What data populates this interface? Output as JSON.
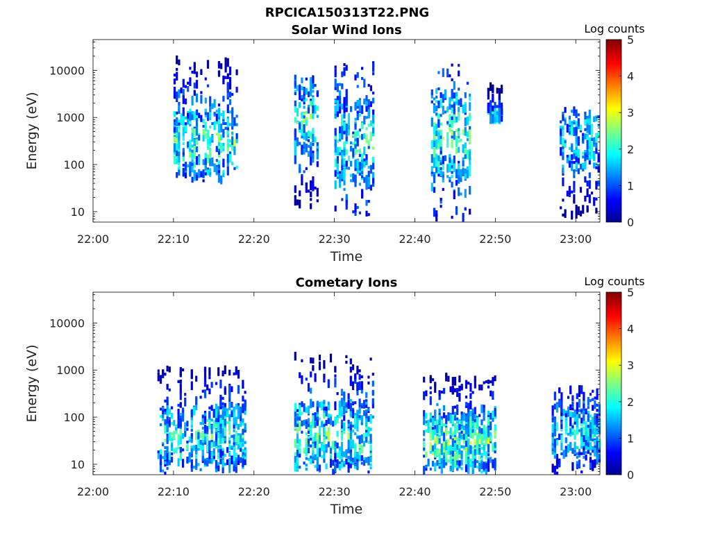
{
  "figure": {
    "title": "RPCICA150313T22.PNG"
  },
  "chart_data": [
    {
      "type": "heatmap",
      "title": "Solar Wind Ions",
      "xlabel": "Time",
      "ylabel": "Energy (eV)",
      "x_ticks": [
        "22:00",
        "22:10",
        "22:20",
        "22:30",
        "22:40",
        "22:50",
        "23:00"
      ],
      "x_range": [
        "22:00",
        "23:03"
      ],
      "y_scale": "log",
      "y_ticks": [
        "10",
        "100",
        "1000",
        "10000"
      ],
      "y_range": [
        6,
        45000
      ],
      "colorbar": {
        "label": "Log counts",
        "range": [
          0,
          5
        ],
        "ticks": [
          "0",
          "1",
          "2",
          "3",
          "4",
          "5"
        ],
        "colormap": "jet"
      },
      "bursts": [
        {
          "t_start": "22:10",
          "t_end": "22:18",
          "e_min": 45,
          "e_max": 17000,
          "peak_energy": 300,
          "peak_log_counts": 2.6
        },
        {
          "t_start": "22:25",
          "t_end": "22:28",
          "e_min": 13,
          "e_max": 7000,
          "peak_energy": 1000,
          "peak_log_counts": 2.4
        },
        {
          "t_start": "22:30",
          "t_end": "22:35",
          "e_min": 6,
          "e_max": 14000,
          "peak_energy": 300,
          "peak_log_counts": 2.3
        },
        {
          "t_start": "22:42",
          "t_end": "22:47",
          "e_min": 6,
          "e_max": 13000,
          "peak_energy": 400,
          "peak_log_counts": 2.6
        },
        {
          "t_start": "22:49",
          "t_end": "22:51",
          "e_min": 900,
          "e_max": 5000,
          "peak_energy": 1100,
          "peak_log_counts": 2.0
        },
        {
          "t_start": "22:58",
          "t_end": "23:03",
          "e_min": 8,
          "e_max": 1500,
          "peak_energy": 300,
          "peak_log_counts": 2.2
        }
      ]
    },
    {
      "type": "heatmap",
      "title": "Cometary Ions",
      "xlabel": "Time",
      "ylabel": "Energy (eV)",
      "x_ticks": [
        "22:00",
        "22:10",
        "22:20",
        "22:30",
        "22:40",
        "22:50",
        "23:00"
      ],
      "x_range": [
        "22:00",
        "23:03"
      ],
      "y_scale": "log",
      "y_ticks": [
        "10",
        "100",
        "1000",
        "10000"
      ],
      "y_range": [
        6,
        45000
      ],
      "colorbar": {
        "label": "Log counts",
        "range": [
          0,
          5
        ],
        "ticks": [
          "0",
          "1",
          "2",
          "3",
          "4",
          "5"
        ],
        "colormap": "jet"
      },
      "bursts": [
        {
          "t_start": "22:08",
          "t_end": "22:19",
          "e_min": 6,
          "e_max": 1100,
          "peak_energy": 40,
          "peak_log_counts": 2.4
        },
        {
          "t_start": "22:25",
          "t_end": "22:35",
          "e_min": 6,
          "e_max": 2200,
          "peak_energy": 40,
          "peak_log_counts": 2.5
        },
        {
          "t_start": "22:41",
          "t_end": "22:50",
          "e_min": 6,
          "e_max": 800,
          "peak_energy": 30,
          "peak_log_counts": 2.8
        },
        {
          "t_start": "22:57",
          "t_end": "23:03",
          "e_min": 6,
          "e_max": 400,
          "peak_energy": 50,
          "peak_log_counts": 2.2
        }
      ]
    }
  ]
}
